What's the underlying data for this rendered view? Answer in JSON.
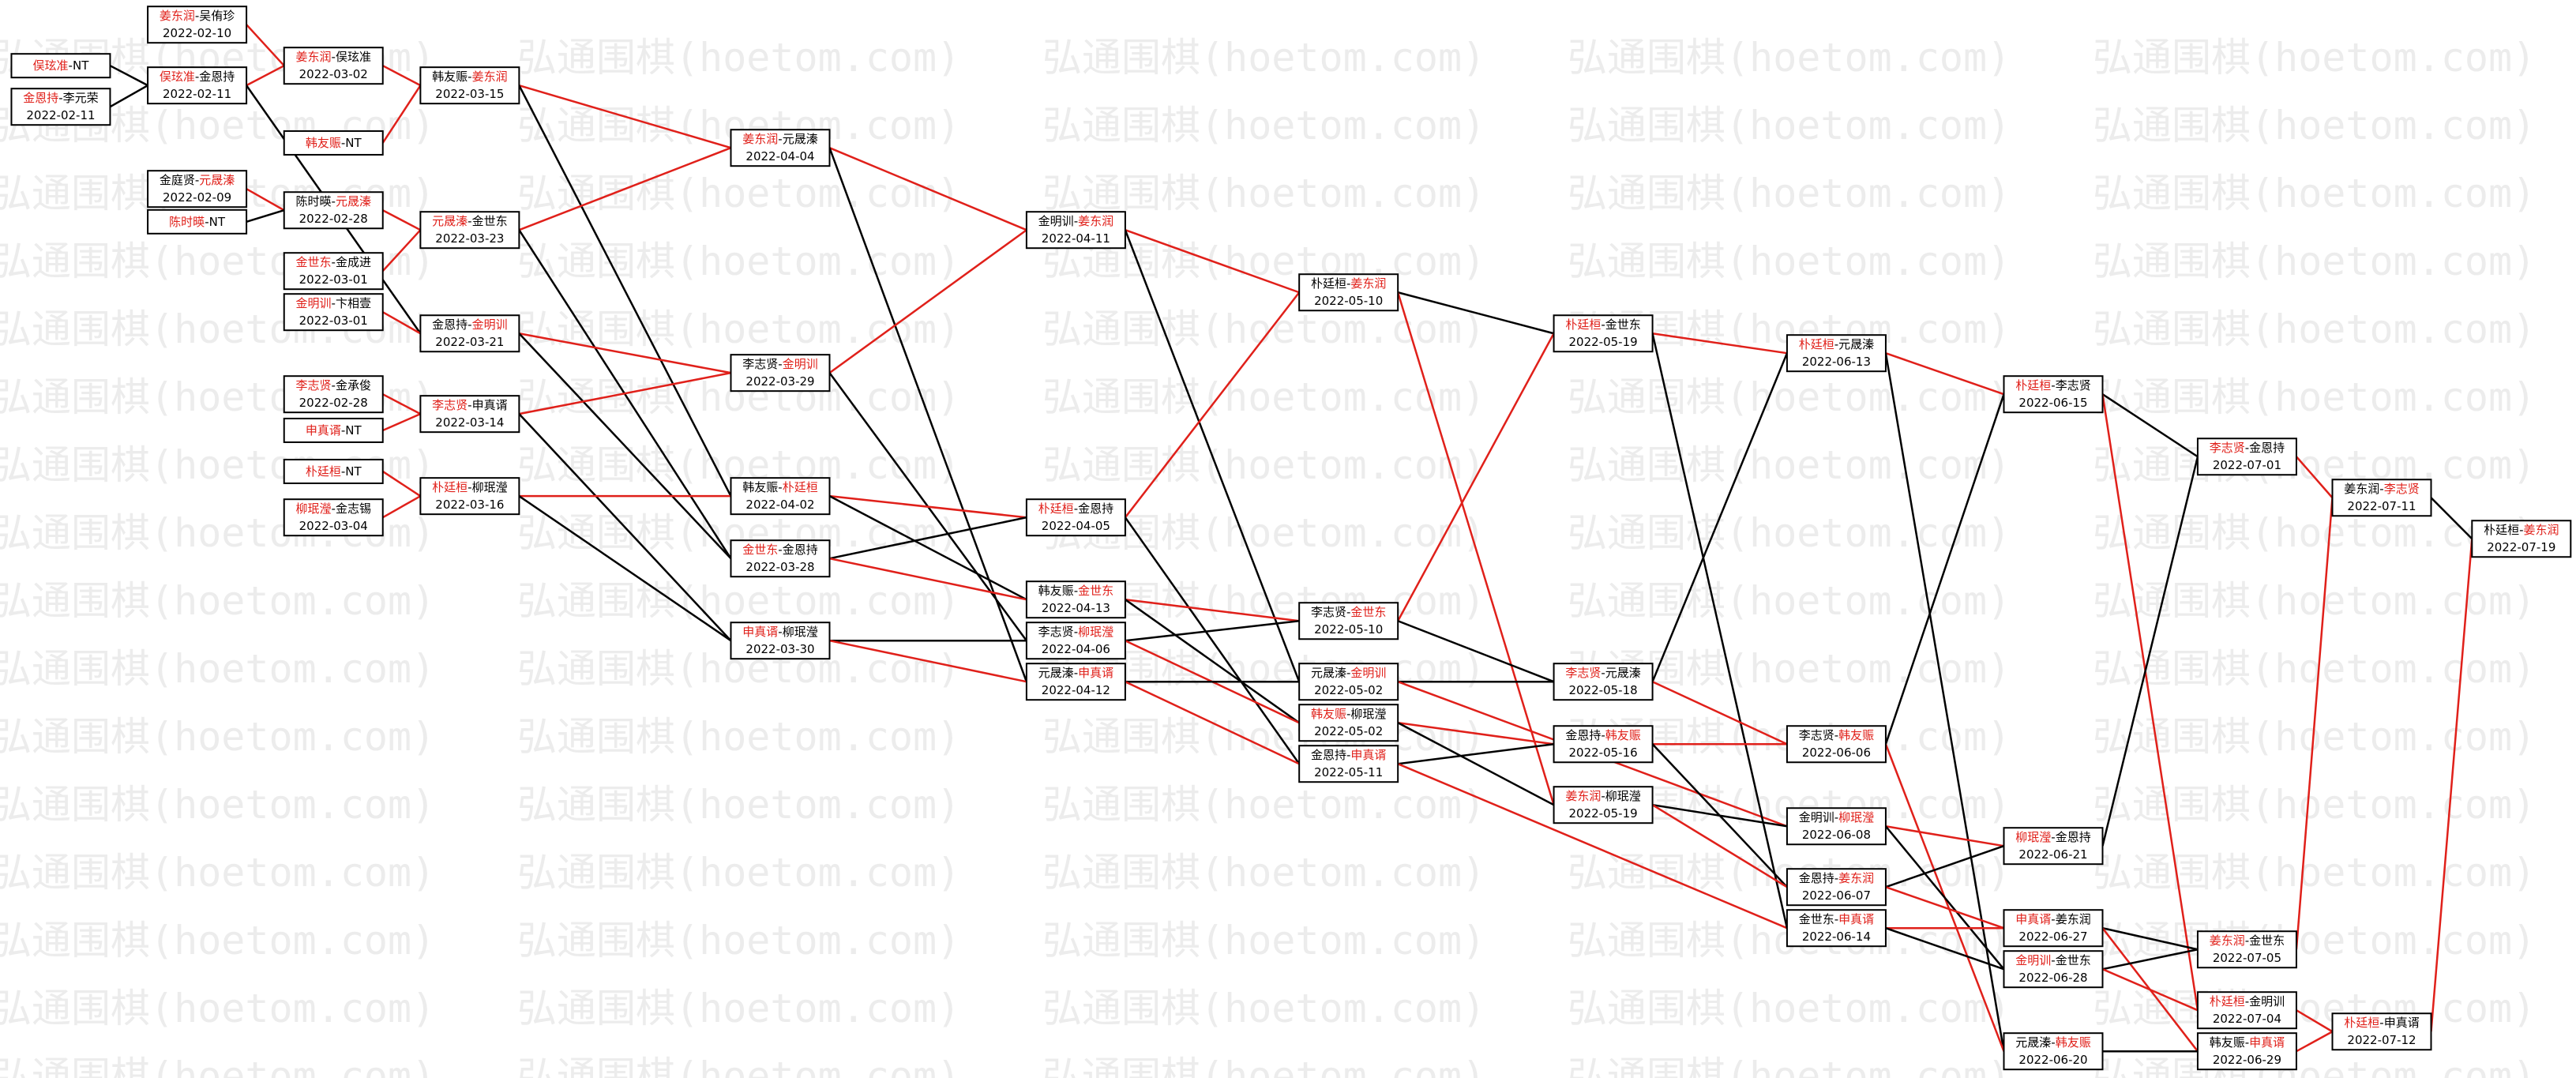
{
  "watermark": "弘通围棋(hoetom.com)",
  "separator": "-",
  "nodes": [
    {
      "players": [
        "俣玹准",
        "NT"
      ],
      "winner": 0
    },
    {
      "players": [
        "金恩持",
        "李元荣"
      ],
      "winner": 0,
      "date": "2022-02-11"
    },
    {
      "players": [
        "姜东润",
        "吴侑珍"
      ],
      "winner": 0,
      "date": "2022-02-10"
    },
    {
      "players": [
        "俣玹准",
        "金恩持"
      ],
      "winner": 0,
      "date": "2022-02-11"
    },
    {
      "players": [
        "金庭贤",
        "元晟溱"
      ],
      "winner": 1,
      "date": "2022-02-09"
    },
    {
      "players": [
        "陈时暎",
        "NT"
      ],
      "winner": 0
    },
    {
      "players": [
        "姜东润",
        "俣玹准"
      ],
      "winner": 0,
      "date": "2022-03-02"
    },
    {
      "players": [
        "韩友赈",
        "NT"
      ],
      "winner": 0
    },
    {
      "players": [
        "陈时暎",
        "元晟溱"
      ],
      "winner": 1,
      "date": "2022-02-28"
    },
    {
      "players": [
        "金世东",
        "金成进"
      ],
      "winner": 0,
      "date": "2022-03-01"
    },
    {
      "players": [
        "金明训",
        "卞相壹"
      ],
      "winner": 0,
      "date": "2022-03-01"
    },
    {
      "players": [
        "李志贤",
        "金承俊"
      ],
      "winner": 0,
      "date": "2022-02-28"
    },
    {
      "players": [
        "申真谞",
        "NT"
      ],
      "winner": 0
    },
    {
      "players": [
        "朴廷桓",
        "NT"
      ],
      "winner": 0
    },
    {
      "players": [
        "柳珉瀅",
        "金志锡"
      ],
      "winner": 0,
      "date": "2022-03-04"
    },
    {
      "players": [
        "韩友赈",
        "姜东润"
      ],
      "winner": 1,
      "date": "2022-03-15"
    },
    {
      "players": [
        "元晟溱",
        "金世东"
      ],
      "winner": 0,
      "date": "2022-03-23"
    },
    {
      "players": [
        "金恩持",
        "金明训"
      ],
      "winner": 1,
      "date": "2022-03-21"
    },
    {
      "players": [
        "李志贤",
        "申真谞"
      ],
      "winner": 0,
      "date": "2022-03-14"
    },
    {
      "players": [
        "朴廷桓",
        "柳珉瀅"
      ],
      "winner": 0,
      "date": "2022-03-16"
    },
    {
      "players": [
        "姜东润",
        "元晟溱"
      ],
      "winner": 0,
      "date": "2022-04-04"
    },
    {
      "players": [
        "李志贤",
        "金明训"
      ],
      "winner": 1,
      "date": "2022-03-29"
    },
    {
      "players": [
        "韩友赈",
        "朴廷桓"
      ],
      "winner": 1,
      "date": "2022-04-02"
    },
    {
      "players": [
        "金世东",
        "金恩持"
      ],
      "winner": 0,
      "date": "2022-03-28"
    },
    {
      "players": [
        "申真谞",
        "柳珉瀅"
      ],
      "winner": 0,
      "date": "2022-03-30"
    },
    {
      "players": [
        "金明训",
        "姜东润"
      ],
      "winner": 1,
      "date": "2022-04-11"
    },
    {
      "players": [
        "朴廷桓",
        "金恩持"
      ],
      "winner": 0,
      "date": "2022-04-05"
    },
    {
      "players": [
        "韩友赈",
        "金世东"
      ],
      "winner": 1,
      "date": "2022-04-13"
    },
    {
      "players": [
        "李志贤",
        "柳珉瀅"
      ],
      "winner": 1,
      "date": "2022-04-06"
    },
    {
      "players": [
        "元晟溱",
        "申真谞"
      ],
      "winner": 1,
      "date": "2022-04-12"
    },
    {
      "players": [
        "朴廷桓",
        "姜东润"
      ],
      "winner": 1,
      "date": "2022-05-10"
    },
    {
      "players": [
        "李志贤",
        "金世东"
      ],
      "winner": 1,
      "date": "2022-05-10"
    },
    {
      "players": [
        "元晟溱",
        "金明训"
      ],
      "winner": 1,
      "date": "2022-05-02"
    },
    {
      "players": [
        "韩友赈",
        "柳珉瀅"
      ],
      "winner": 0,
      "date": "2022-05-02"
    },
    {
      "players": [
        "金恩持",
        "申真谞"
      ],
      "winner": 1,
      "date": "2022-05-11"
    },
    {
      "players": [
        "朴廷桓",
        "金世东"
      ],
      "winner": 0,
      "date": "2022-05-19"
    },
    {
      "players": [
        "李志贤",
        "元晟溱"
      ],
      "winner": 0,
      "date": "2022-05-18"
    },
    {
      "players": [
        "金恩持",
        "韩友赈"
      ],
      "winner": 1,
      "date": "2022-05-16"
    },
    {
      "players": [
        "姜东润",
        "柳珉瀅"
      ],
      "winner": 0,
      "date": "2022-05-19"
    },
    {
      "players": [
        "朴廷桓",
        "元晟溱"
      ],
      "winner": 0,
      "date": "2022-06-13"
    },
    {
      "players": [
        "李志贤",
        "韩友赈"
      ],
      "winner": 1,
      "date": "2022-06-06"
    },
    {
      "players": [
        "金明训",
        "柳珉瀅"
      ],
      "winner": 1,
      "date": "2022-06-08"
    },
    {
      "players": [
        "金恩持",
        "姜东润"
      ],
      "winner": 1,
      "date": "2022-06-07"
    },
    {
      "players": [
        "金世东",
        "申真谞"
      ],
      "winner": 1,
      "date": "2022-06-14"
    },
    {
      "players": [
        "朴廷桓",
        "李志贤"
      ],
      "winner": 0,
      "date": "2022-06-15"
    },
    {
      "players": [
        "柳珉瀅",
        "金恩持"
      ],
      "winner": 0,
      "date": "2022-06-21"
    },
    {
      "players": [
        "申真谞",
        "姜东润"
      ],
      "winner": 0,
      "date": "2022-06-27"
    },
    {
      "players": [
        "金明训",
        "金世东"
      ],
      "winner": 0,
      "date": "2022-06-28"
    },
    {
      "players": [
        "元晟溱",
        "韩友赈"
      ],
      "winner": 1,
      "date": "2022-06-20"
    },
    {
      "players": [
        "李志贤",
        "金恩持"
      ],
      "winner": 0,
      "date": "2022-07-01"
    },
    {
      "players": [
        "姜东润",
        "金世东"
      ],
      "winner": 0,
      "date": "2022-07-05"
    },
    {
      "players": [
        "朴廷桓",
        "金明训"
      ],
      "winner": 0,
      "date": "2022-07-04"
    },
    {
      "players": [
        "韩友赈",
        "申真谞"
      ],
      "winner": 1,
      "date": "2022-06-29"
    },
    {
      "players": [
        "姜东润",
        "李志贤"
      ],
      "winner": 1,
      "date": "2022-07-11"
    },
    {
      "players": [
        "朴廷桓",
        "申真谞"
      ],
      "winner": 0,
      "date": "2022-07-12"
    },
    {
      "players": [
        "朴廷桓",
        "姜东润"
      ],
      "winner": 1,
      "date": "2022-07-19"
    }
  ]
}
